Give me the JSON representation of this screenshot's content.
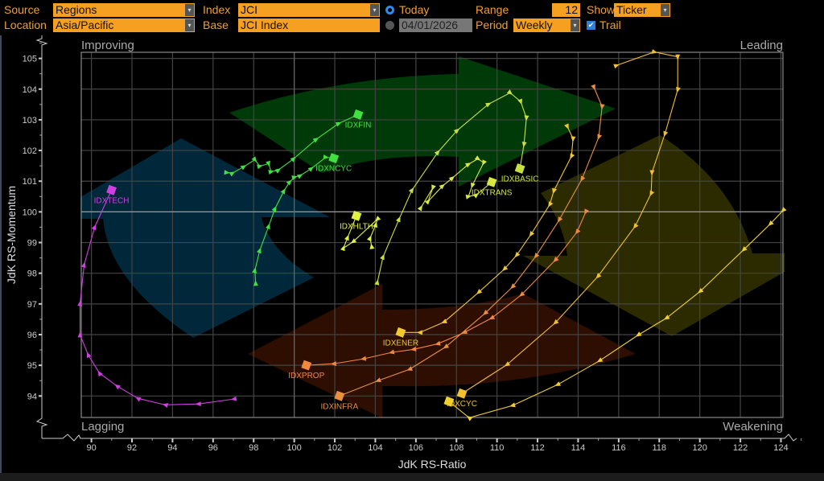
{
  "toolbar": {
    "source_label": "Source",
    "source_value": "Regions",
    "index_label": "Index",
    "index_value": "JCI",
    "today_label": "Today",
    "range_label": "Range",
    "range_value": "12",
    "show_label": "Show",
    "show_value": "Ticker",
    "location_label": "Location",
    "location_value": "Asia/Pacific",
    "base_label": "Base",
    "base_value": "JCI Index",
    "date_value": "04/01/2026",
    "period_label": "Period",
    "period_value": "Weekly",
    "trail_label": "Trail",
    "trail_checked": true
  },
  "chart_data": {
    "type": "scatter",
    "subtype": "relative-rotation-graph-trails",
    "xlabel": "JdK RS-Ratio",
    "ylabel": "JdK RS-Momentum",
    "xlim": [
      89.5,
      124.1
    ],
    "ylim": [
      93.3,
      105.2
    ],
    "x_ticks": [
      90,
      92,
      94,
      96,
      98,
      100,
      102,
      104,
      106,
      108,
      110,
      112,
      114,
      116,
      118,
      120,
      122,
      124
    ],
    "y_ticks": [
      94,
      95,
      96,
      97,
      98,
      99,
      100,
      101,
      102,
      103,
      104,
      105
    ],
    "grid": true,
    "quadrants": {
      "top_left": "Improving",
      "top_right": "Leading",
      "bottom_left": "Lagging",
      "bottom_right": "Weakening"
    },
    "quadrant_colors": {
      "improving": "#00283a",
      "leading": "#003a08",
      "weakening": "#2e2c00",
      "lagging": "#2e0e00"
    },
    "series": [
      {
        "name": "IDXTECH",
        "color": "#d040e0",
        "x": [
          97.03,
          95.28,
          93.65,
          92.3,
          91.27,
          90.4,
          89.84,
          89.44,
          89.44,
          89.64,
          90.16,
          90.99
        ],
        "y": [
          93.9,
          93.74,
          93.71,
          93.92,
          94.32,
          94.74,
          95.34,
          95.99,
          97.01,
          98.27,
          99.5,
          100.71
        ]
      },
      {
        "name": "IDXFIN",
        "color": "#40e040",
        "x": [
          96.67,
          96.95,
          97.51,
          98.06,
          98.3,
          98.74,
          98.86,
          99.21,
          99.97,
          101.08,
          102.19,
          103.15
        ],
        "y": [
          101.28,
          101.26,
          101.47,
          101.7,
          101.49,
          101.57,
          101.31,
          101.36,
          101.73,
          102.36,
          102.88,
          103.17
        ]
      },
      {
        "name": "IDXNCYC",
        "color": "#40e040",
        "x": [
          98.1,
          98.06,
          98.3,
          98.74,
          99.05,
          99.49,
          99.77,
          100.01,
          100.29,
          100.84,
          101.56,
          101.95
        ],
        "y": [
          97.67,
          98.09,
          98.74,
          99.53,
          100.1,
          100.68,
          100.97,
          101.13,
          101.18,
          101.41,
          101.78,
          101.75
        ]
      },
      {
        "name": "IDXHLTH",
        "color": "#e0f040",
        "x": [
          103.82,
          103.74,
          104.02,
          104.1,
          102.91,
          102.43,
          102.63,
          103.07
        ],
        "y": [
          98.87,
          99.14,
          99.58,
          99.76,
          99.03,
          98.82,
          99.16,
          99.87
        ]
      },
      {
        "name": "IDXBASIC",
        "color": "#c8e040",
        "x": [
          104.1,
          104.38,
          105.17,
          105.81,
          107.08,
          108.03,
          109.58,
          110.65,
          111.17,
          111.45,
          111.33,
          111.13
        ],
        "y": [
          97.7,
          98.53,
          99.76,
          100.71,
          101.94,
          102.65,
          103.51,
          103.88,
          103.59,
          103.06,
          102.2,
          101.41
        ]
      },
      {
        "name": "IDXTRANS",
        "color": "#d8e840",
        "x": [
          106.24,
          106.84,
          106.6,
          107.31,
          107.79,
          108.59,
          109.06,
          109.34,
          108.78,
          108.59,
          108.98,
          109.74
        ],
        "y": [
          100.13,
          100.79,
          100.34,
          100.84,
          101.1,
          101.55,
          101.73,
          101.6,
          100.86,
          100.5,
          100.55,
          100.97
        ]
      },
      {
        "name": "IDXENER",
        "color": "#f0c830",
        "x": [
          113.47,
          113.75,
          113.67,
          112.8,
          112.6,
          111.68,
          110.97,
          110.37,
          109.1,
          107.39,
          106.2,
          105.25
        ],
        "y": [
          102.78,
          102.38,
          101.81,
          100.68,
          100.24,
          99.27,
          98.59,
          98.14,
          97.38,
          96.41,
          96.07,
          96.07
        ]
      },
      {
        "name": "IDXPROP",
        "color": "#f08840",
        "x": [
          114.38,
          113.95,
          112.88,
          111.21,
          109.74,
          108.39,
          107.08,
          105.89,
          104.81,
          103.42,
          101.95,
          100.6
        ],
        "y": [
          100.0,
          99.35,
          98.43,
          97.3,
          96.54,
          96.07,
          95.7,
          95.52,
          95.42,
          95.21,
          95.05,
          95.0
        ]
      },
      {
        "name": "IDXINFRA",
        "color": "#e89040",
        "x": [
          114.78,
          115.18,
          115.02,
          114.19,
          113.07,
          111.92,
          110.77,
          109.42,
          107.47,
          105.69,
          104.14,
          102.23
        ],
        "y": [
          104.06,
          103.43,
          102.44,
          101.07,
          99.74,
          98.56,
          97.56,
          96.7,
          95.6,
          94.87,
          94.5,
          94.0
        ]
      },
      {
        "name": "IDXCYC",
        "color": "#f0c030",
        "x": [
          115.89,
          117.76,
          118.91,
          118.91,
          118.28,
          117.64,
          117.6,
          116.81,
          114.98,
          112.88,
          110.49,
          108.27
        ],
        "y": [
          104.77,
          105.21,
          105.05,
          103.98,
          102.54,
          101.28,
          100.6,
          99.53,
          97.9,
          96.39,
          95.02,
          94.08
        ]
      },
      {
        "name": "",
        "color": "#f0d030",
        "x": [
          124.11,
          123.48,
          122.17,
          120.02,
          118.36,
          116.97,
          115.06,
          112.99,
          110.77,
          108.63,
          107.63
        ],
        "y": [
          100.05,
          99.61,
          98.77,
          97.41,
          96.54,
          95.99,
          95.15,
          94.37,
          93.69,
          93.29,
          93.82
        ]
      }
    ]
  }
}
